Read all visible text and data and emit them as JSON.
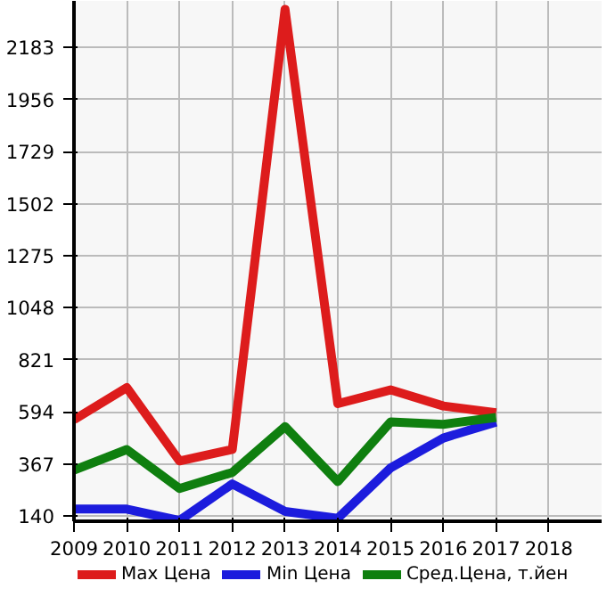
{
  "chart_data": {
    "type": "line",
    "x": [
      2009,
      2010,
      2011,
      2012,
      2013,
      2014,
      2015,
      2016,
      2017
    ],
    "series": [
      {
        "name": "Max Цена",
        "color": "#dd1c1c",
        "values": [
          560,
          700,
          380,
          430,
          2350,
          630,
          690,
          620,
          590
        ]
      },
      {
        "name": "Min Цена",
        "color": "#1c1cdd",
        "values": [
          170,
          170,
          120,
          280,
          160,
          130,
          350,
          480,
          550
        ]
      },
      {
        "name": "Сред.Цена, т.йен",
        "color": "#0f7f0f",
        "values": [
          340,
          430,
          260,
          330,
          530,
          290,
          550,
          540,
          570
        ]
      }
    ],
    "xlim": [
      2009,
      2019
    ],
    "xticks": [
      2009,
      2010,
      2011,
      2012,
      2013,
      2014,
      2015,
      2016,
      2017,
      2018
    ],
    "ylim": [
      117,
      2387
    ],
    "yticks": [
      140,
      367,
      594,
      821,
      1048,
      1275,
      1502,
      1729,
      1956,
      2183
    ],
    "grid": true,
    "legend": "bottom",
    "marker": "none",
    "line_style": "solid"
  }
}
